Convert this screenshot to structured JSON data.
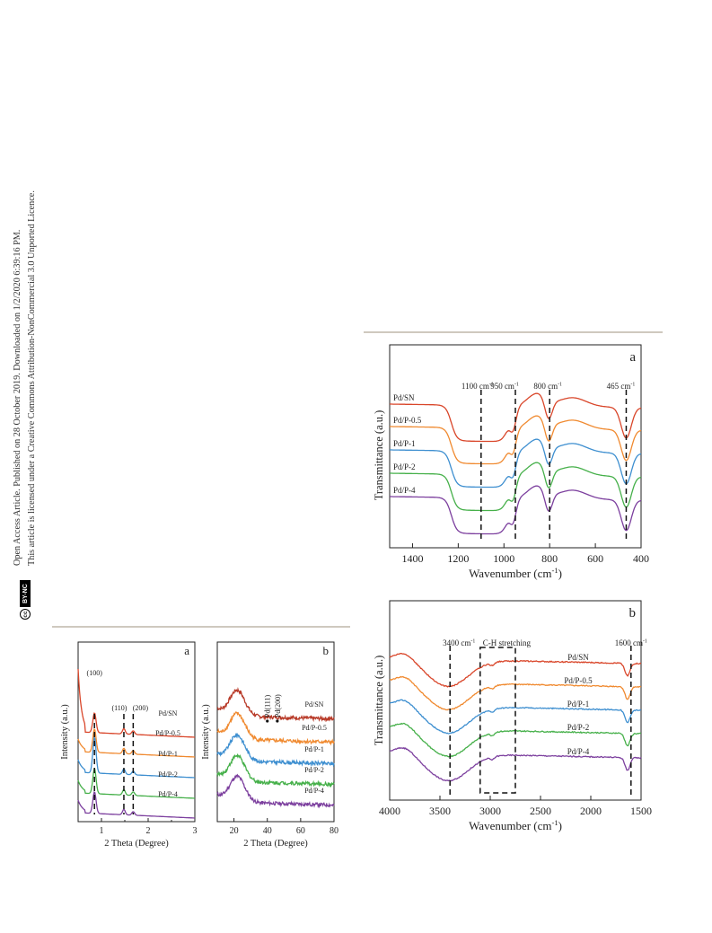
{
  "sidebar": {
    "line1": "Open Access Article. Published on 28 October 2019. Downloaded on 1/2/2020 6:39:16 PM.",
    "line2": "This article is licensed under a Creative Commons Attribution-NonCommercial 3.0 Unported Licence.",
    "cc_icon": "cc",
    "by_nc": "BY-NC"
  },
  "colors": {
    "Pd/SN": "#d9462a",
    "Pd/P-0.5": "#f08a30",
    "Pd/P-1": "#3e8fd0",
    "Pd/P-2": "#46b04a",
    "Pd/P-4": "#7c3f9e",
    "Pd/SN-xrd": "#b83a28"
  },
  "chart_data": [
    {
      "id": "saxs",
      "panel": "a",
      "type": "line",
      "xlabel": "2 Theta (Degree)",
      "ylabel": "Intensity (a.u.)",
      "xlim": [
        0.5,
        3
      ],
      "xticks": [
        "1",
        "2",
        "3"
      ],
      "grid": false,
      "series": [
        {
          "name": "Pd/SN",
          "label": "Pd/SN"
        },
        {
          "name": "Pd/P-0.5",
          "label": "Pd/P-0.5"
        },
        {
          "name": "Pd/P-1",
          "label": "Pd/P-1"
        },
        {
          "name": "Pd/P-2",
          "label": "Pd/P-2"
        },
        {
          "name": "Pd/P-4",
          "label": "Pd/P-4"
        }
      ],
      "peaks": [
        {
          "x": 0.85,
          "label": "(100)"
        },
        {
          "x": 1.48,
          "label": "(110)"
        },
        {
          "x": 1.68,
          "label": "(200)"
        }
      ]
    },
    {
      "id": "waxs",
      "panel": "b",
      "type": "line",
      "xlabel": "2 Theta (Degree)",
      "ylabel": "Intensity (a.u.)",
      "xlim": [
        10,
        80
      ],
      "xticks": [
        "20",
        "40",
        "60",
        "80"
      ],
      "grid": false,
      "series": [
        {
          "name": "Pd/SN",
          "label": "Pd/SN"
        },
        {
          "name": "Pd/P-0.5",
          "label": "Pd/P-0.5"
        },
        {
          "name": "Pd/P-1",
          "label": "Pd/P-1"
        },
        {
          "name": "Pd/P-2",
          "label": "Pd/P-2"
        },
        {
          "name": "Pd/P-4",
          "label": "Pd/P-4"
        }
      ],
      "markers": [
        {
          "x": 40,
          "label": "Pd(111)"
        },
        {
          "x": 46,
          "label": "Pd(200)"
        }
      ]
    },
    {
      "id": "ftir_a",
      "panel": "a",
      "type": "line",
      "xlabel": "Wavenumber (cm-1)",
      "xlabel_main": "Wavenumber (cm",
      "xlabel_sup": "-1",
      "xlabel_end": ")",
      "ylabel": "Transmittance (a.u.)",
      "xlim": [
        1500,
        400
      ],
      "xticks": [
        "1400",
        "1200",
        "1000",
        "800",
        "600",
        "400"
      ],
      "grid": false,
      "series": [
        {
          "name": "Pd/SN",
          "label": "Pd/SN"
        },
        {
          "name": "Pd/P-0.5",
          "label": "Pd/P-0.5"
        },
        {
          "name": "Pd/P-1",
          "label": "Pd/P-1"
        },
        {
          "name": "Pd/P-2",
          "label": "Pd/P-2"
        },
        {
          "name": "Pd/P-4",
          "label": "Pd/P-4"
        }
      ],
      "annotations": [
        {
          "x": 1100,
          "label": "1100 cm",
          "sup": "-1"
        },
        {
          "x": 950,
          "label": "950 cm",
          "sup": "-1"
        },
        {
          "x": 800,
          "label": "800 cm",
          "sup": "-1"
        },
        {
          "x": 465,
          "label": "465 cm",
          "sup": "-1"
        }
      ]
    },
    {
      "id": "ftir_b",
      "panel": "b",
      "type": "line",
      "xlabel": "Wavenumber (cm-1)",
      "xlabel_main": "Wavenumber (cm",
      "xlabel_sup": "-1",
      "xlabel_end": ")",
      "ylabel": "Transmittance (a.u.)",
      "xlim": [
        4000,
        1500
      ],
      "xticks": [
        "4000",
        "3500",
        "3000",
        "2500",
        "2000",
        "1500"
      ],
      "grid": false,
      "series": [
        {
          "name": "Pd/SN",
          "label": "Pd/SN"
        },
        {
          "name": "Pd/P-0.5",
          "label": "Pd/P-0.5"
        },
        {
          "name": "Pd/P-1",
          "label": "Pd/P-1"
        },
        {
          "name": "Pd/P-2",
          "label": "Pd/P-2"
        },
        {
          "name": "Pd/P-4",
          "label": "Pd/P-4"
        }
      ],
      "annotations": [
        {
          "x": 3400,
          "label": "3400 cm",
          "sup": "-1"
        },
        {
          "x": 1600,
          "label": "1600 cm",
          "sup": "-1"
        }
      ],
      "box": {
        "x1": 3100,
        "x2": 2750,
        "label": "C-H stretching"
      }
    }
  ]
}
